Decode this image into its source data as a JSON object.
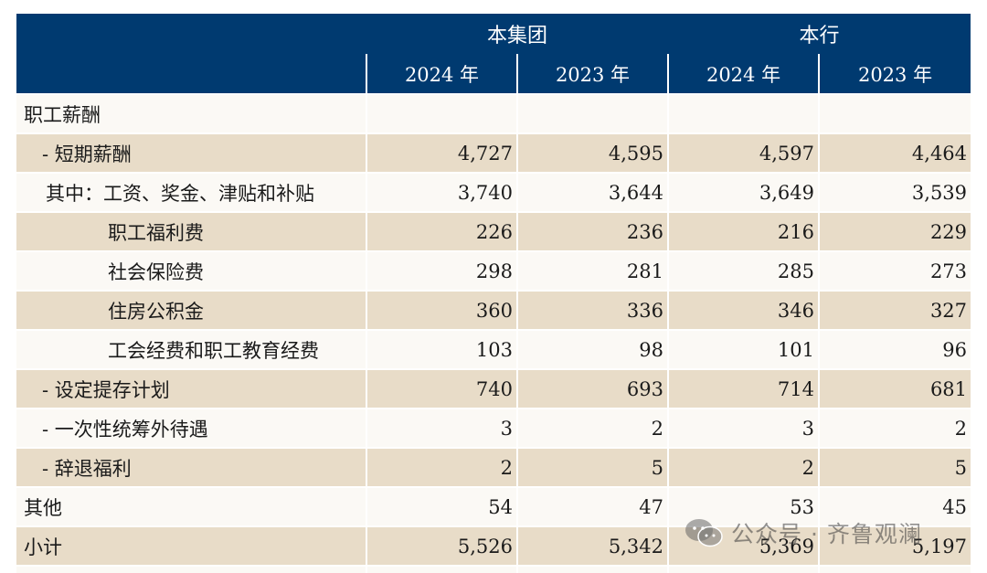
{
  "header": {
    "group_title": "本集团",
    "bank_title": "本行",
    "years": [
      "2024 年",
      "2023 年",
      "2024 年",
      "2023 年"
    ]
  },
  "rows": [
    {
      "label": "职工薪酬",
      "values": [
        "",
        "",
        "",
        ""
      ]
    },
    {
      "label": "- 短期薪酬",
      "values": [
        "4,727",
        "4,595",
        "4,597",
        "4,464"
      ]
    },
    {
      "label": "其中：工资、奖金、津贴和补贴",
      "values": [
        "3,740",
        "3,644",
        "3,649",
        "3,539"
      ]
    },
    {
      "label": "职工福利费",
      "values": [
        "226",
        "236",
        "216",
        "229"
      ]
    },
    {
      "label": "社会保险费",
      "values": [
        "298",
        "281",
        "285",
        "273"
      ]
    },
    {
      "label": "住房公积金",
      "values": [
        "360",
        "336",
        "346",
        "327"
      ]
    },
    {
      "label": "工会经费和职工教育经费",
      "values": [
        "103",
        "98",
        "101",
        "96"
      ]
    },
    {
      "label": "- 设定提存计划",
      "values": [
        "740",
        "693",
        "714",
        "681"
      ]
    },
    {
      "label": "- 一次性统筹外待遇",
      "values": [
        "3",
        "2",
        "3",
        "2"
      ]
    },
    {
      "label": "- 辞退福利",
      "values": [
        "2",
        "5",
        "2",
        "5"
      ]
    },
    {
      "label": "其他",
      "values": [
        "54",
        "47",
        "53",
        "45"
      ]
    },
    {
      "label": "小计",
      "values": [
        "5,526",
        "5,342",
        "5,369",
        "5,197"
      ]
    }
  ],
  "watermark": {
    "text": "公众号 · 齐鲁观澜",
    "icon": "wechat-icon"
  },
  "colors": {
    "header_bg": "#003a70",
    "row_shade": "#e8dcc8",
    "row_plain": "#fbf9f5"
  }
}
